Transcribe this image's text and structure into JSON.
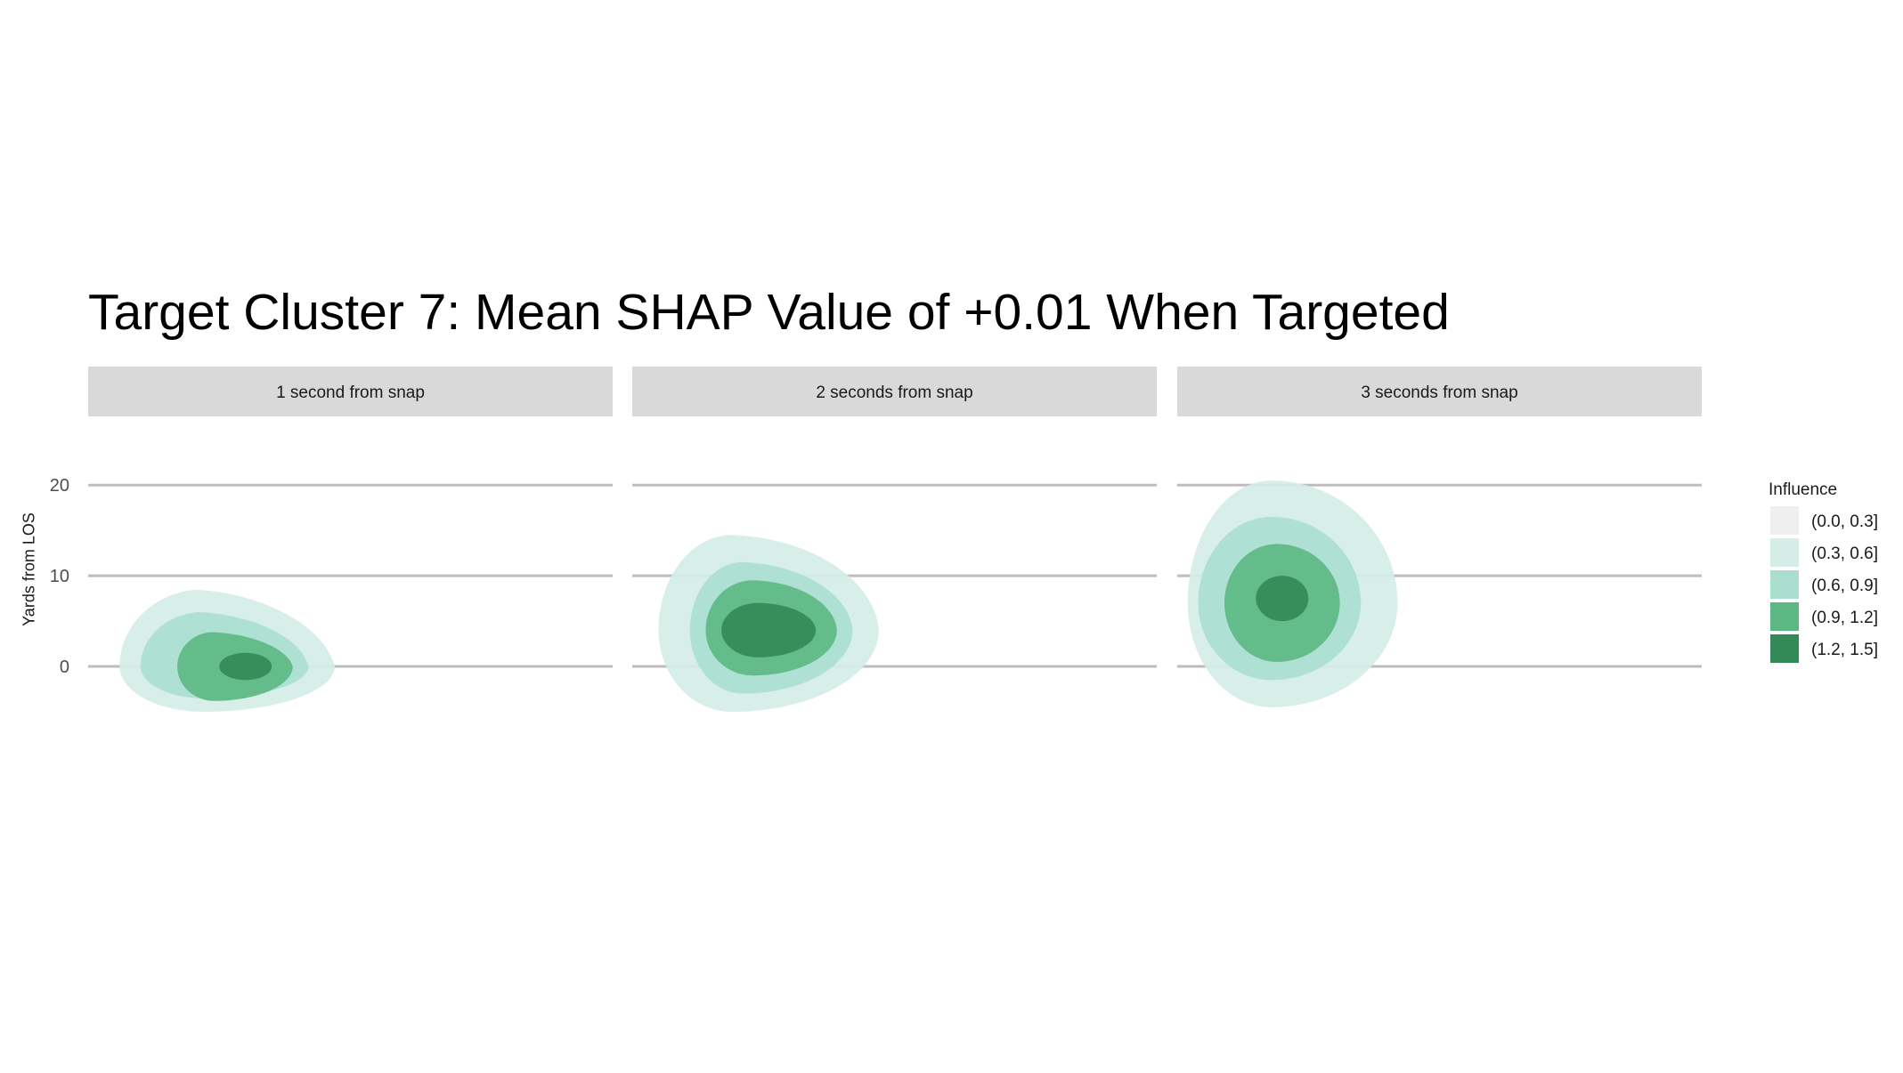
{
  "chart_data": {
    "type": "area",
    "title": "Target Cluster 7: Mean SHAP Value of +0.01 When Targeted",
    "ylabel": "Yards from LOS",
    "y_ticks": [
      0,
      10,
      20
    ],
    "ylim": [
      -5,
      21
    ],
    "xlim": [
      0,
      1
    ],
    "grid": "horizontal major only",
    "legend": {
      "title": "Influence",
      "position": "right",
      "levels": [
        {
          "label": "(0.0, 0.3]",
          "color": "#efefef"
        },
        {
          "label": "(0.3, 0.6]",
          "color": "#d5ede7"
        },
        {
          "label": "(0.6, 0.9]",
          "color": "#aadfd0"
        },
        {
          "label": "(0.9, 1.2]",
          "color": "#5cb883"
        },
        {
          "label": "(1.2, 1.5]",
          "color": "#338a56"
        }
      ]
    },
    "panels": [
      {
        "label": "1 second from snap",
        "contours": [
          {
            "level": "(0.3, 0.6]",
            "cx": 0.22,
            "cy": 0.0,
            "rx_left": 0.16,
            "rx_right": 0.25,
            "ry_up": 8.5,
            "ry_down": 5.0,
            "skew": 0.6
          },
          {
            "level": "(0.6, 0.9]",
            "cx": 0.22,
            "cy": 0.0,
            "rx_left": 0.12,
            "rx_right": 0.2,
            "ry_up": 6.0,
            "ry_down": 3.5,
            "skew": 0.5
          },
          {
            "level": "(0.9, 1.2]",
            "cx": 0.24,
            "cy": 0.0,
            "rx_left": 0.07,
            "rx_right": 0.15,
            "ry_up": 3.8,
            "ry_down": 3.8,
            "skew": 0.5
          },
          {
            "level": "(1.2, 1.5]",
            "cx": 0.3,
            "cy": 0.0,
            "rx_left": 0.05,
            "rx_right": 0.05,
            "ry_up": 1.5,
            "ry_down": 1.5,
            "skew": 0.0
          }
        ]
      },
      {
        "label": "2 seconds from snap",
        "contours": [
          {
            "level": "(0.3, 0.6]",
            "cx": 0.19,
            "cy": 4.0,
            "rx_left": 0.14,
            "rx_right": 0.28,
            "ry_up": 10.5,
            "ry_down": 9.0,
            "skew": 0.2
          },
          {
            "level": "(0.6, 0.9]",
            "cx": 0.21,
            "cy": 4.0,
            "rx_left": 0.1,
            "rx_right": 0.21,
            "ry_up": 7.5,
            "ry_down": 7.0,
            "skew": 0.2
          },
          {
            "level": "(0.9, 1.2]",
            "cx": 0.23,
            "cy": 4.0,
            "rx_left": 0.09,
            "rx_right": 0.16,
            "ry_up": 5.5,
            "ry_down": 5.0,
            "skew": 0.15
          },
          {
            "level": "(1.2, 1.5]",
            "cx": 0.24,
            "cy": 4.0,
            "rx_left": 0.07,
            "rx_right": 0.11,
            "ry_up": 3.0,
            "ry_down": 3.0,
            "skew": 0.1
          }
        ]
      },
      {
        "label": "3 seconds from snap",
        "contours": [
          {
            "level": "(0.3, 0.6]",
            "cx": 0.18,
            "cy": 7.0,
            "rx_left": 0.16,
            "rx_right": 0.24,
            "ry_up": 13.5,
            "ry_down": 11.5,
            "skew": 0.0
          },
          {
            "level": "(0.6, 0.9]",
            "cx": 0.18,
            "cy": 7.0,
            "rx_left": 0.14,
            "rx_right": 0.17,
            "ry_up": 9.5,
            "ry_down": 8.5,
            "skew": 0.0
          },
          {
            "level": "(0.9, 1.2]",
            "cx": 0.19,
            "cy": 7.0,
            "rx_left": 0.1,
            "rx_right": 0.12,
            "ry_up": 6.5,
            "ry_down": 6.5,
            "skew": 0.0
          },
          {
            "level": "(1.2, 1.5]",
            "cx": 0.2,
            "cy": 7.5,
            "rx_left": 0.05,
            "rx_right": 0.05,
            "ry_up": 2.5,
            "ry_down": 2.5,
            "skew": 0.0
          }
        ]
      }
    ]
  }
}
